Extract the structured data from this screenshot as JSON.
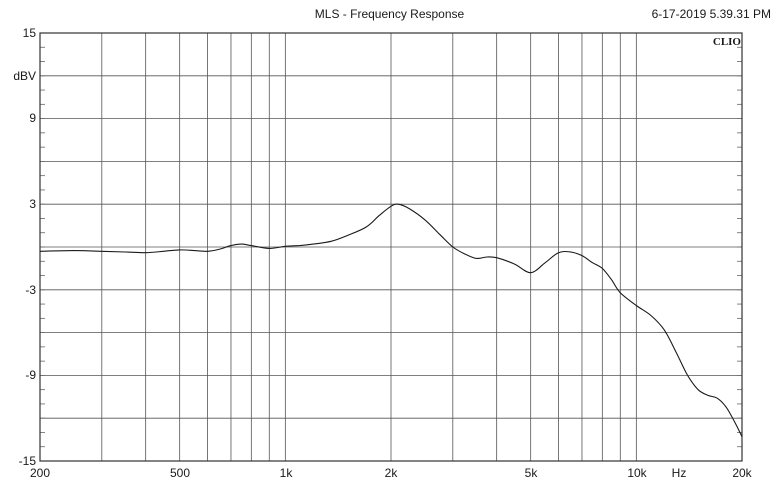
{
  "header": {
    "title": "MLS - Frequency Response",
    "timestamp": "6-17-2019 5.39.31 PM",
    "brand": "CLIO"
  },
  "axes": {
    "y_unit": "dBV",
    "x_unit": "Hz",
    "y_ticks": [
      "15",
      "9",
      "3",
      "-3",
      "-9",
      "-15"
    ],
    "x_ticks": [
      "200",
      "500",
      "1k",
      "2k",
      "5k",
      "10k",
      "20k"
    ]
  },
  "colors": {
    "curve": "#1a1a1a",
    "grid": "#555555",
    "frame": "#333333",
    "background": "#ffffff"
  },
  "chart_data": {
    "type": "line",
    "title": "MLS - Frequency Response",
    "xlabel": "Hz",
    "ylabel": "dBV",
    "xscale": "log",
    "xlim": [
      200,
      20000
    ],
    "ylim": [
      -15,
      15
    ],
    "grid": true,
    "y_major_step": 3,
    "series": [
      {
        "name": "Frequency Response",
        "x": [
          200,
          250,
          300,
          350,
          400,
          450,
          500,
          550,
          600,
          650,
          700,
          750,
          800,
          900,
          1000,
          1100,
          1200,
          1350,
          1500,
          1700,
          1850,
          2000,
          2100,
          2250,
          2500,
          2750,
          3000,
          3250,
          3500,
          3750,
          4000,
          4500,
          5000,
          5500,
          6000,
          6500,
          7000,
          7500,
          8000,
          8500,
          9000,
          10000,
          11000,
          12000,
          13000,
          14000,
          15000,
          16000,
          17000,
          18000,
          19000,
          20000
        ],
        "values": [
          -0.3,
          -0.25,
          -0.3,
          -0.35,
          -0.4,
          -0.3,
          -0.2,
          -0.25,
          -0.3,
          -0.15,
          0.1,
          0.2,
          0.1,
          -0.1,
          0.05,
          0.1,
          0.2,
          0.4,
          0.8,
          1.4,
          2.2,
          2.85,
          3.0,
          2.7,
          1.9,
          0.9,
          0.0,
          -0.5,
          -0.8,
          -0.7,
          -0.75,
          -1.2,
          -1.8,
          -1.1,
          -0.4,
          -0.35,
          -0.6,
          -1.1,
          -1.5,
          -2.3,
          -3.2,
          -4.1,
          -4.8,
          -5.8,
          -7.4,
          -9.0,
          -10.0,
          -10.4,
          -10.6,
          -11.2,
          -12.2,
          -13.3
        ]
      }
    ]
  }
}
